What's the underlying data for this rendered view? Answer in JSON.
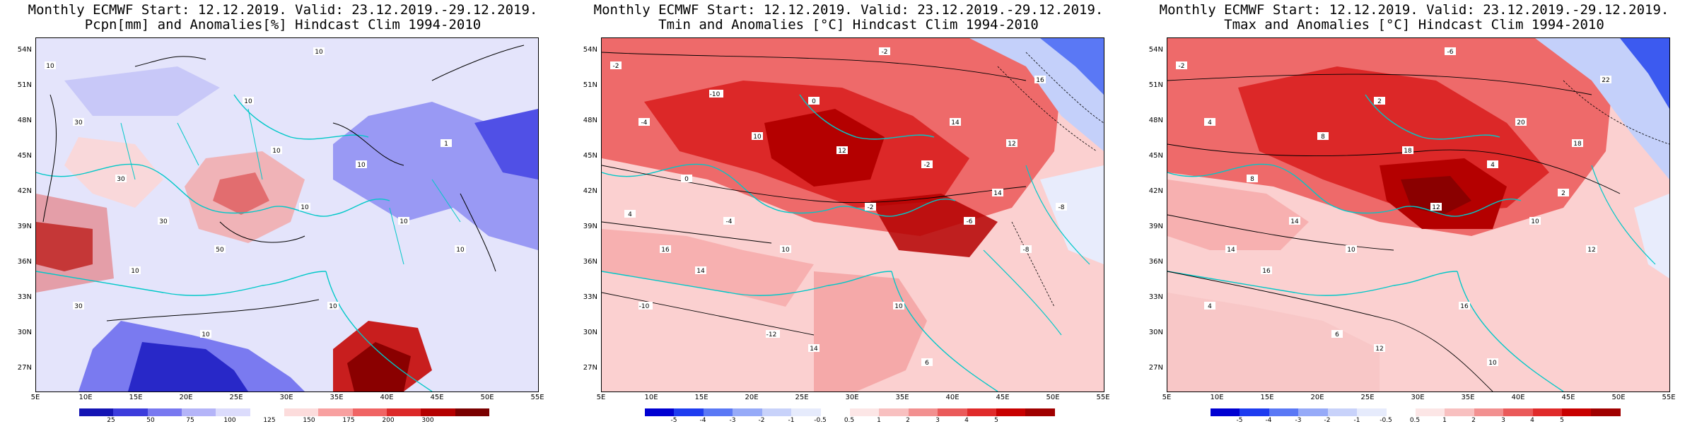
{
  "panels": [
    {
      "id": "pcpn",
      "title_line1": "Monthly ECMWF Start: 12.12.2019. Valid: 23.12.2019.-29.12.2019.",
      "title_line2": "Pcpn[mm] and Anomalies[%] Hindcast Clim 1994-2010",
      "lat_labels": [
        "54N",
        "51N",
        "48N",
        "45N",
        "42N",
        "39N",
        "36N",
        "33N",
        "30N",
        "27N"
      ],
      "lon_labels": [
        "5E",
        "10E",
        "15E",
        "20E",
        "25E",
        "30E",
        "35E",
        "40E",
        "45E",
        "50E",
        "55E"
      ],
      "colorbar_labels": [
        "25",
        "50",
        "75",
        "100",
        "125",
        "150",
        "175",
        "200",
        "300"
      ],
      "colorbar_colors": [
        "#1414b4",
        "#3c3cdc",
        "#7878f0",
        "#b4b4f8",
        "#dcdcfc",
        "#ffffff",
        "#fcdcdc",
        "#f8a0a0",
        "#f06464",
        "#dc2828",
        "#b40000",
        "#7a0000"
      ],
      "contour_labels": [
        "10",
        "10",
        "30",
        "10",
        "30",
        "10",
        "50",
        "10",
        "30",
        "10",
        "10",
        "30",
        "10",
        "10",
        "1",
        "10",
        "10"
      ]
    },
    {
      "id": "tmin",
      "title_line1": "Monthly ECMWF Start: 12.12.2019. Valid: 23.12.2019.-29.12.2019.",
      "title_line2": "Tmin and Anomalies [°C] Hindcast Clim 1994-2010",
      "lat_labels": [
        "54N",
        "51N",
        "48N",
        "45N",
        "42N",
        "39N",
        "36N",
        "33N",
        "30N",
        "27N"
      ],
      "lon_labels": [
        "5E",
        "10E",
        "15E",
        "20E",
        "25E",
        "30E",
        "35E",
        "40E",
        "45E",
        "50E",
        "55E"
      ],
      "colorbar_labels": [
        "-5",
        "-4",
        "-3",
        "-2",
        "-1",
        "-0.5",
        "0.5",
        "1",
        "2",
        "3",
        "4",
        "5"
      ],
      "colorbar_colors": [
        "#0000d2",
        "#1e3cf0",
        "#5a78f5",
        "#96aaf8",
        "#c8d2fa",
        "#e6ebfc",
        "#ffffff",
        "#fce6e6",
        "#f8c0c0",
        "#f29090",
        "#ea5a5a",
        "#e02a2a",
        "#c80000",
        "#a00000"
      ],
      "contour_labels": [
        "-2",
        "-2",
        "-4",
        "0",
        "0",
        "-2",
        "10",
        "-2",
        "-4",
        "-6",
        "-8",
        "-10",
        "-12",
        "10",
        "12",
        "14",
        "12",
        "14",
        "16",
        "16",
        "14",
        "6",
        "10",
        "14",
        "4",
        "-8",
        "-10"
      ]
    },
    {
      "id": "tmax",
      "title_line1": "Monthly ECMWF Start: 12.12.2019. Valid: 23.12.2019.-29.12.2019.",
      "title_line2": "Tmax and Anomalies [°C] Hindcast Clim 1994-2010",
      "lat_labels": [
        "54N",
        "51N",
        "48N",
        "45N",
        "42N",
        "39N",
        "36N",
        "33N",
        "30N",
        "27N"
      ],
      "lon_labels": [
        "5E",
        "10E",
        "15E",
        "20E",
        "25E",
        "30E",
        "35E",
        "40E",
        "45E",
        "50E",
        "55E"
      ],
      "colorbar_labels": [
        "-5",
        "-4",
        "-3",
        "-2",
        "-1",
        "-0.5",
        "0.5",
        "1",
        "2",
        "3",
        "4",
        "5"
      ],
      "colorbar_colors": [
        "#0000d2",
        "#1e3cf0",
        "#5a78f5",
        "#96aaf8",
        "#c8d2fa",
        "#e6ebfc",
        "#ffffff",
        "#fce6e6",
        "#f8c0c0",
        "#f29090",
        "#ea5a5a",
        "#e02a2a",
        "#c80000",
        "#a00000"
      ],
      "contour_labels": [
        "-2",
        "-6",
        "4",
        "2",
        "8",
        "4",
        "10",
        "12",
        "14",
        "10",
        "12",
        "4",
        "6",
        "16",
        "18",
        "16",
        "18",
        "20",
        "22",
        "14",
        "12",
        "10",
        "8",
        "2"
      ]
    }
  ]
}
